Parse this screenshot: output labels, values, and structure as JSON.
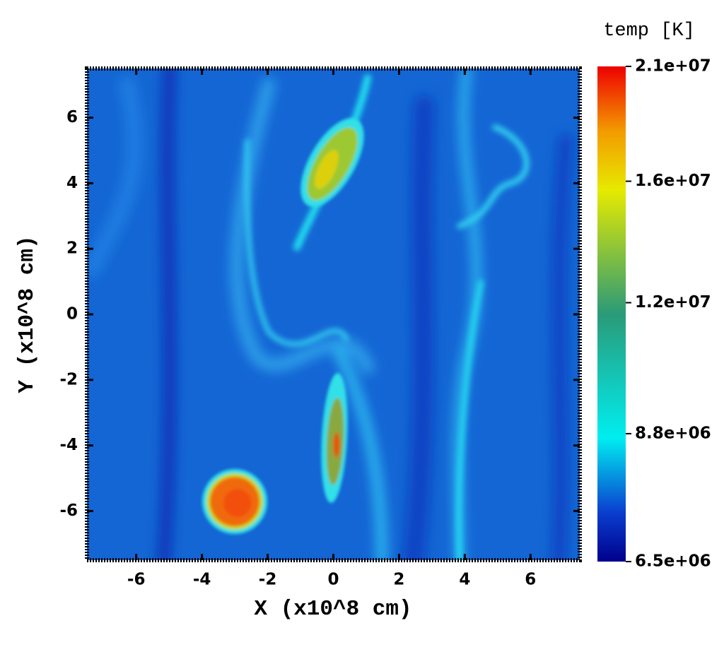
{
  "chart_data": {
    "type": "heatmap",
    "xlabel": "X (x10^8 cm)",
    "ylabel": "Y (x10^8 cm)",
    "xlim": [
      -7.5,
      7.5
    ],
    "ylim": [
      -7.5,
      7.5
    ],
    "xticks": [
      -6,
      -4,
      -2,
      0,
      2,
      4,
      6
    ],
    "yticks": [
      -6,
      -4,
      -2,
      0,
      2,
      4,
      6
    ],
    "colorbar": {
      "title": "temp [K]",
      "log": true,
      "lim": [
        6500000,
        21000000
      ],
      "ticks": [
        {
          "value": 6500000,
          "label": "6.5e+06"
        },
        {
          "value": 8800000,
          "label": "8.8e+06"
        },
        {
          "value": 12000000,
          "label": "1.2e+07"
        },
        {
          "value": 16000000,
          "label": "1.6e+07"
        },
        {
          "value": 21000000,
          "label": "2.1e+07"
        }
      ]
    }
  }
}
